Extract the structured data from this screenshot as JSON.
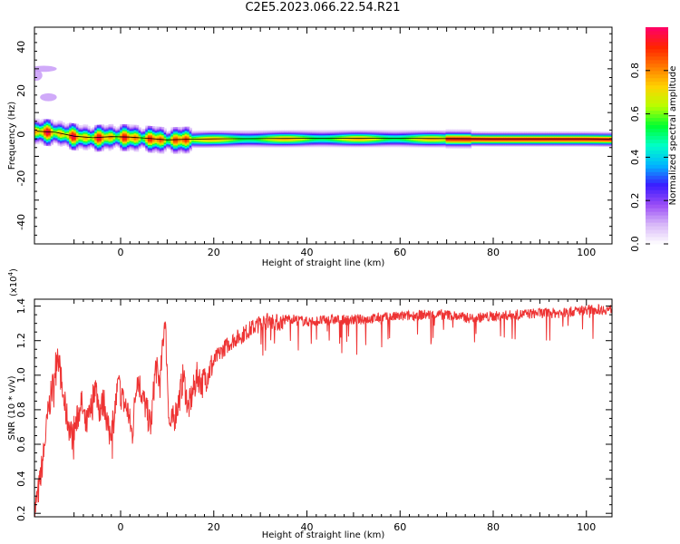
{
  "title": "C2E5.2023.066.22.54.R21",
  "chart_data": [
    {
      "type": "heatmap",
      "xlabel": "Height of straight line (km)",
      "ylabel": "Frequency (Hz)",
      "xlim": [
        -18.5,
        105.5
      ],
      "ylim": [
        -50,
        49
      ],
      "xticks": [
        0,
        20,
        40,
        60,
        80,
        100
      ],
      "yticks": [
        -40,
        -20,
        0,
        20,
        40
      ],
      "colorbar": {
        "label": "Normalized spectral amplitude",
        "range": [
          0,
          1
        ],
        "ticks": [
          "0.0",
          "0.2",
          "0.4",
          "0.6",
          "0.8"
        ],
        "colors": [
          "#ffffff",
          "#d8b8f8",
          "#9a4cf6",
          "#3a1cff",
          "#00b6ff",
          "#00ffc8",
          "#00ff30",
          "#b8ff00",
          "#ffd200",
          "#ff7a00",
          "#ff2400",
          "#ff006a"
        ]
      },
      "ridge": [
        [
          -18,
          1.5
        ],
        [
          -14,
          1.0
        ],
        [
          -10,
          -0.8
        ],
        [
          -6,
          -1.5
        ],
        [
          -2,
          -1.0
        ],
        [
          2,
          -1.2
        ],
        [
          6,
          -1.8
        ],
        [
          10,
          -2.5
        ],
        [
          14,
          -2.2
        ],
        [
          20,
          -2.0
        ],
        [
          40,
          -1.8
        ],
        [
          60,
          -1.8
        ],
        [
          80,
          -2.0
        ],
        [
          100,
          -2.0
        ],
        [
          105,
          -2.1
        ]
      ]
    },
    {
      "type": "line",
      "xlabel": "Height of straight line (km)",
      "ylabel": "SNR (10 * v/v)",
      "yscale_note": "(x10",
      "yscale_exp": "4",
      "yscale_close": ")",
      "xlim": [
        -18.5,
        105.5
      ],
      "ylim": [
        0.18,
        1.44
      ],
      "xticks": [
        0,
        20,
        40,
        60,
        80,
        100
      ],
      "yticks": [
        "0.2",
        "0.4",
        "0.6",
        "0.8",
        "1.0",
        "1.2",
        "1.4"
      ],
      "color": "#ee3333",
      "series": [
        {
          "x": [
            -18.5,
            -17.5,
            -16.5,
            -15.5,
            -14.5,
            -13.5,
            -12.5,
            -11.5,
            -10.5,
            -9.5,
            -8.5,
            -7.5,
            -6.5,
            -5.5,
            -4.5,
            -3.5,
            -2.5,
            -1.5,
            -0.5,
            0.5,
            1.5,
            2.5,
            3.5,
            4.5,
            5.5,
            6.5,
            7.5,
            8.5,
            9.5,
            10.5,
            11.5,
            12.5,
            13.5,
            14.5,
            15.5,
            16.5,
            17.5,
            18.5,
            19.5,
            20.5,
            22,
            24,
            26,
            28,
            30,
            32,
            34,
            36,
            38,
            40,
            45,
            50,
            55,
            60,
            65,
            70,
            75,
            80,
            85,
            90,
            95,
            100,
            105.5
          ],
          "y": [
            0.2,
            0.35,
            0.55,
            0.8,
            0.95,
            1.15,
            0.9,
            0.75,
            0.65,
            0.72,
            0.85,
            0.7,
            0.78,
            0.95,
            0.8,
            0.85,
            0.65,
            0.75,
            0.95,
            0.85,
            0.8,
            0.65,
            1.0,
            0.9,
            0.8,
            0.7,
            1.05,
            0.95,
            1.35,
            0.7,
            0.75,
            0.85,
            1.0,
            0.8,
            0.9,
            1.0,
            0.95,
            1.0,
            1.05,
            1.1,
            1.15,
            1.2,
            1.23,
            1.27,
            1.3,
            1.32,
            1.3,
            1.33,
            1.32,
            1.31,
            1.32,
            1.32,
            1.33,
            1.34,
            1.35,
            1.35,
            1.33,
            1.34,
            1.35,
            1.36,
            1.36,
            1.38,
            1.38
          ]
        }
      ]
    }
  ]
}
